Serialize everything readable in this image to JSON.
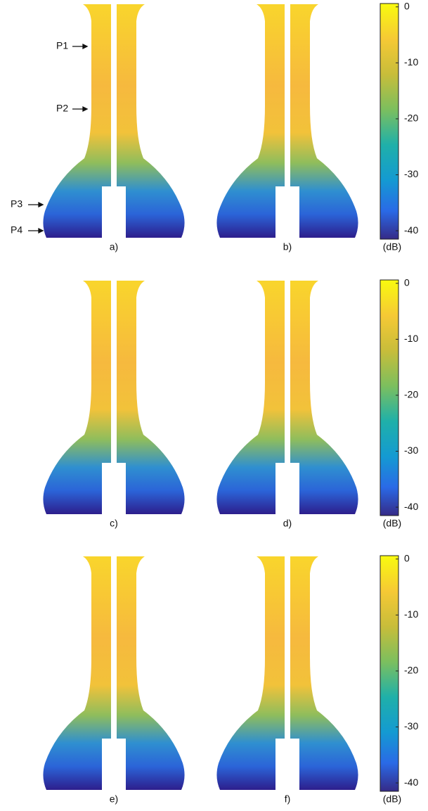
{
  "rows": [
    {
      "panels": [
        {
          "label": "a)"
        },
        {
          "label": "b)"
        }
      ],
      "colorbar": {
        "clim": [
          -41.5,
          0.6
        ],
        "ticks": [
          0,
          -10,
          -20,
          -30,
          -40
        ],
        "unit": "(dB)"
      }
    },
    {
      "panels": [
        {
          "label": "c)"
        },
        {
          "label": "d)"
        }
      ],
      "colorbar": {
        "clim": [
          -41.5,
          0.6
        ],
        "ticks": [
          0,
          -10,
          -20,
          -30,
          -40
        ],
        "unit": "(dB)"
      }
    },
    {
      "panels": [
        {
          "label": "e)"
        },
        {
          "label": "f)"
        }
      ],
      "colorbar": {
        "clim": [
          -41.5,
          0.6
        ],
        "ticks": [
          0,
          -10,
          -20,
          -30,
          -40
        ],
        "unit": "(dB)"
      }
    }
  ],
  "annotations": [
    "P1",
    "P2",
    "P3",
    "P4"
  ]
}
